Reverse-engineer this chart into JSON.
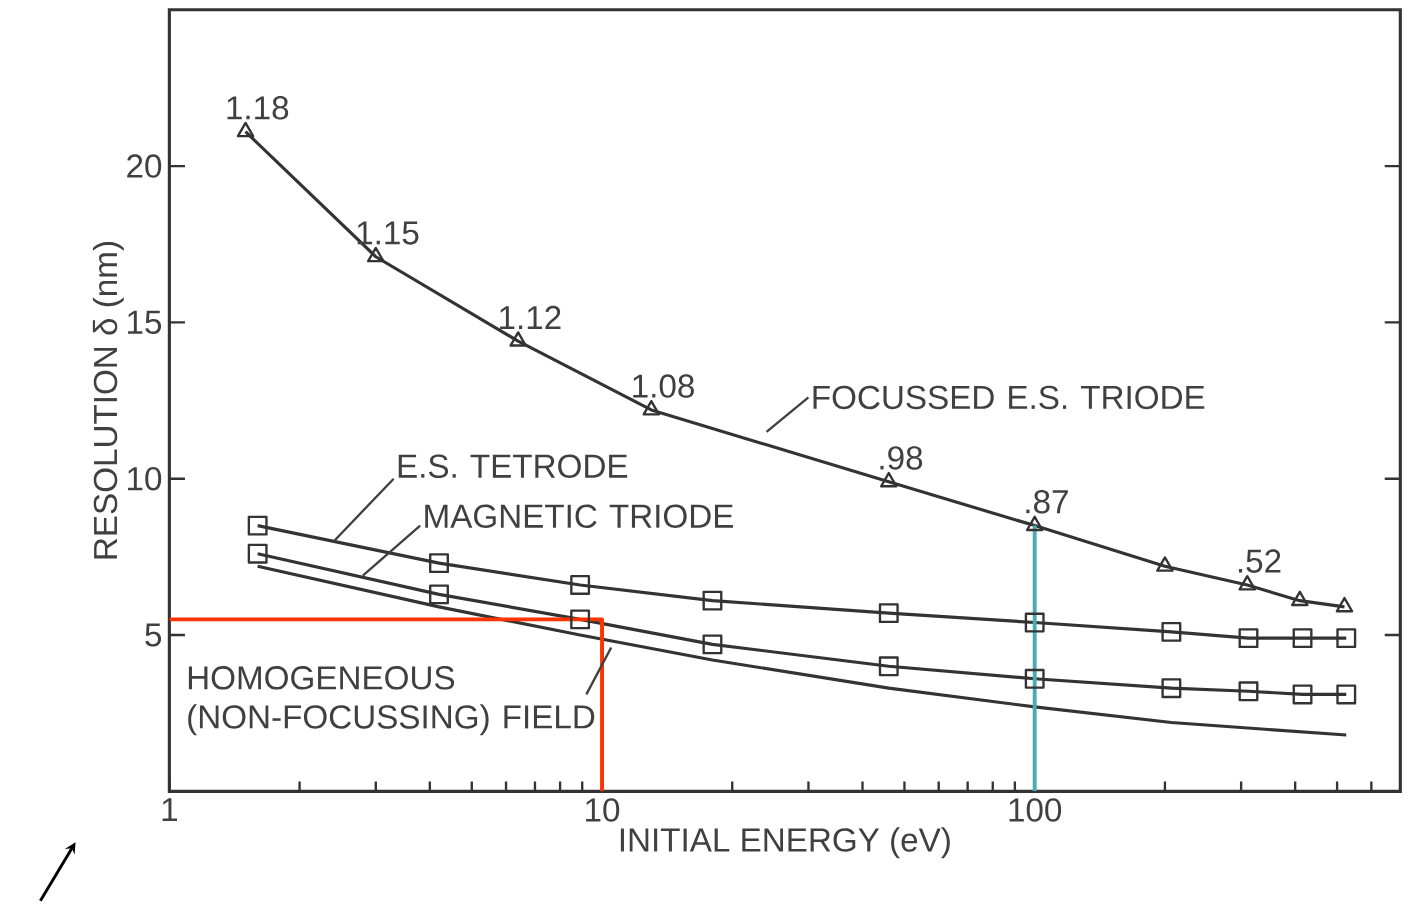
{
  "chart_data": {
    "type": "line",
    "xlabel": "INITIAL ENERGY (eV)",
    "ylabel": "RESOLUTION δ (nm)",
    "log": "x",
    "xlim": [
      1,
      700
    ],
    "xticks": [
      1,
      {
        "value": 2,
        "label": null
      },
      {
        "value": 3,
        "label": null
      },
      {
        "value": 4,
        "label": null
      },
      {
        "value": 5,
        "label": null
      },
      {
        "value": 6,
        "label": null
      },
      {
        "value": 7,
        "label": null
      },
      {
        "value": 8,
        "label": null
      },
      {
        "value": 9,
        "label": null
      },
      10,
      {
        "value": 20,
        "label": null
      },
      {
        "value": 30,
        "label": null
      },
      {
        "value": 40,
        "label": null
      },
      {
        "value": 50,
        "label": null
      },
      {
        "value": 60,
        "label": null
      },
      {
        "value": 70,
        "label": null
      },
      {
        "value": 80,
        "label": null
      },
      {
        "value": 90,
        "label": null
      },
      100,
      {
        "value": 200,
        "label": null
      },
      {
        "value": 300,
        "label": null
      },
      {
        "value": 400,
        "label": null
      },
      {
        "value": 500,
        "label": null
      },
      {
        "value": 600,
        "label": null
      }
    ],
    "ylim": [
      0,
      25
    ],
    "yticks": [
      5,
      10,
      15,
      20
    ],
    "grid": false,
    "series": [
      {
        "name": "FOCUSSED E.S. TRIODE",
        "color": "#333333",
        "marker": "triangle",
        "x": [
          1.5,
          3,
          6.4,
          13,
          46,
          100,
          200,
          310,
          410,
          520
        ],
        "values": [
          21.1,
          17.1,
          14.4,
          12.2,
          9.9,
          8.5,
          7.2,
          6.6,
          6.1,
          5.9
        ]
      },
      {
        "name": "E.S. TETRODE",
        "color": "#333333",
        "marker": "square",
        "x": [
          1.6,
          4.2,
          8.9,
          18,
          46,
          100,
          207,
          312,
          416,
          525
        ],
        "values": [
          8.5,
          7.3,
          6.6,
          6.1,
          5.7,
          5.4,
          5.1,
          4.9,
          4.9,
          4.9
        ]
      },
      {
        "name": "MAGNETIC TRIODE",
        "color": "#333333",
        "marker": "square",
        "x": [
          1.6,
          4.2,
          8.9,
          18,
          46,
          100,
          207,
          312,
          416,
          525
        ],
        "values": [
          7.6,
          6.3,
          5.5,
          4.7,
          4.0,
          3.6,
          3.3,
          3.2,
          3.1,
          3.1
        ]
      },
      {
        "name": "HOMOGENEOUS\n(NON-FOCUSSING) FIELD",
        "color": "#333333",
        "marker": "none",
        "x": [
          1.6,
          4.2,
          8.9,
          18,
          46,
          100,
          207,
          525
        ],
        "values": [
          7.2,
          5.9,
          5.0,
          4.2,
          3.3,
          2.7,
          2.2,
          1.8
        ]
      },
      {
        "color": "#ff3300",
        "marker": "none",
        "x": [
          1,
          10,
          10
        ],
        "values": [
          5.5,
          5.5,
          0
        ]
      },
      {
        "color": "#4aacb0",
        "marker": "none",
        "x": [
          100,
          100
        ],
        "values": [
          0,
          8.5
        ]
      }
    ],
    "annotations": [
      {
        "text": "1.18",
        "x": 1.5,
        "y": 21.1
      },
      {
        "text": "1.15",
        "x": 3,
        "y": 17.1
      },
      {
        "text": "1.12",
        "x": 6.4,
        "y": 14.4
      },
      {
        "text": "1.08",
        "x": 13,
        "y": 12.2
      },
      {
        "text": ".98",
        "x": 46,
        "y": 9.9
      },
      {
        "text": ".87",
        "x": 100,
        "y": 8.5
      },
      {
        "text": ".52",
        "x": 310,
        "y": 6.6
      }
    ]
  }
}
